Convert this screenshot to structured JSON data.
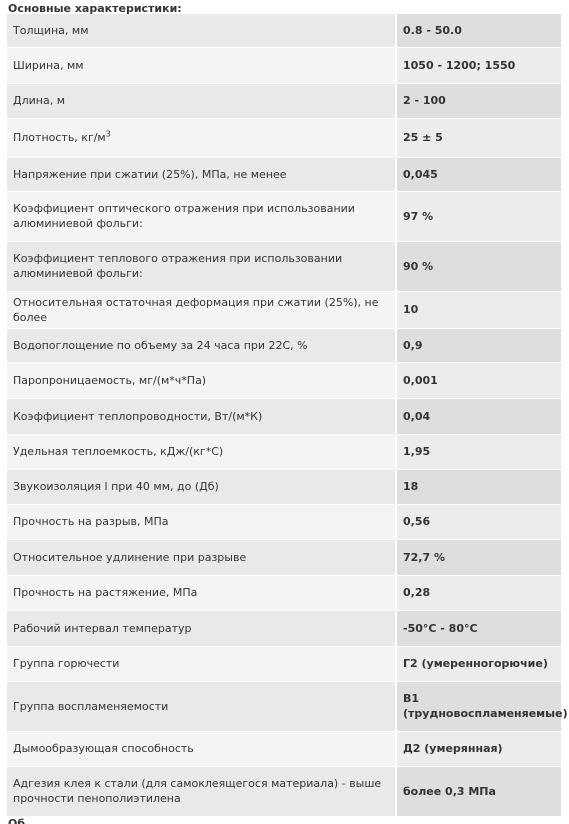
{
  "heading": "Основные характеристики:",
  "rows": [
    {
      "name": "Толщина, мм",
      "value": "0.8 - 50.0"
    },
    {
      "name": "Ширина, мм",
      "value": "1050 - 1200; 1550"
    },
    {
      "name": "Длина, м",
      "value": "2 - 100"
    },
    {
      "name": "Плотность, кг/м",
      "name_sup": "3",
      "value": "25 ± 5"
    },
    {
      "name": "Напряжение при сжатии (25%), МПа, не менее",
      "value": "0,045"
    },
    {
      "name": "Коэффициент оптического отражения при использовании алюминиевой фольги:",
      "value": "97 %"
    },
    {
      "name": "Коэффициент теплового отражения при использовании алюминиевой фольги:",
      "value": "90 %"
    },
    {
      "name": "Относительная остаточная деформация при сжатии (25%), не более",
      "value": "10"
    },
    {
      "name": "Водопоглощение по объему за 24 часа при 22С, %",
      "value": "0,9"
    },
    {
      "name": "Паропроницаемость, мг/(м*ч*Па)",
      "value": "0,001"
    },
    {
      "name": "Коэффициент теплопроводности, Вт/(м*К)",
      "value": "0,04"
    },
    {
      "name": "Удельная теплоемкость, кДж/(кг*С)",
      "value": "1,95"
    },
    {
      "name": "Звукоизоляция l при 40 мм, до (Дб)",
      "value": "18"
    },
    {
      "name": "Прочность на разрыв, МПа",
      "value": "0,56"
    },
    {
      "name": "Относительное удлинение при разрыве",
      "value": "72,7 %"
    },
    {
      "name": "Прочность на растяжение, МПа",
      "value": "0,28"
    },
    {
      "name": "Рабочий интервал температур",
      "value": "-50°С - 80°С"
    },
    {
      "name": "Группа горючести",
      "value": "Г2 (умеренногорючие)"
    },
    {
      "name": "Группа воспламеняемости",
      "value": "В1 (трудновоспламеняемые)"
    },
    {
      "name": "Дымообразующая способность",
      "value": "Д2 (умерянная)"
    },
    {
      "name": "Адгезия клея к стали (для самоклеящегося материала) - выше прочности пенополиэтилена",
      "value": "более 0,3 МПа"
    }
  ],
  "footer_cut": "Об"
}
